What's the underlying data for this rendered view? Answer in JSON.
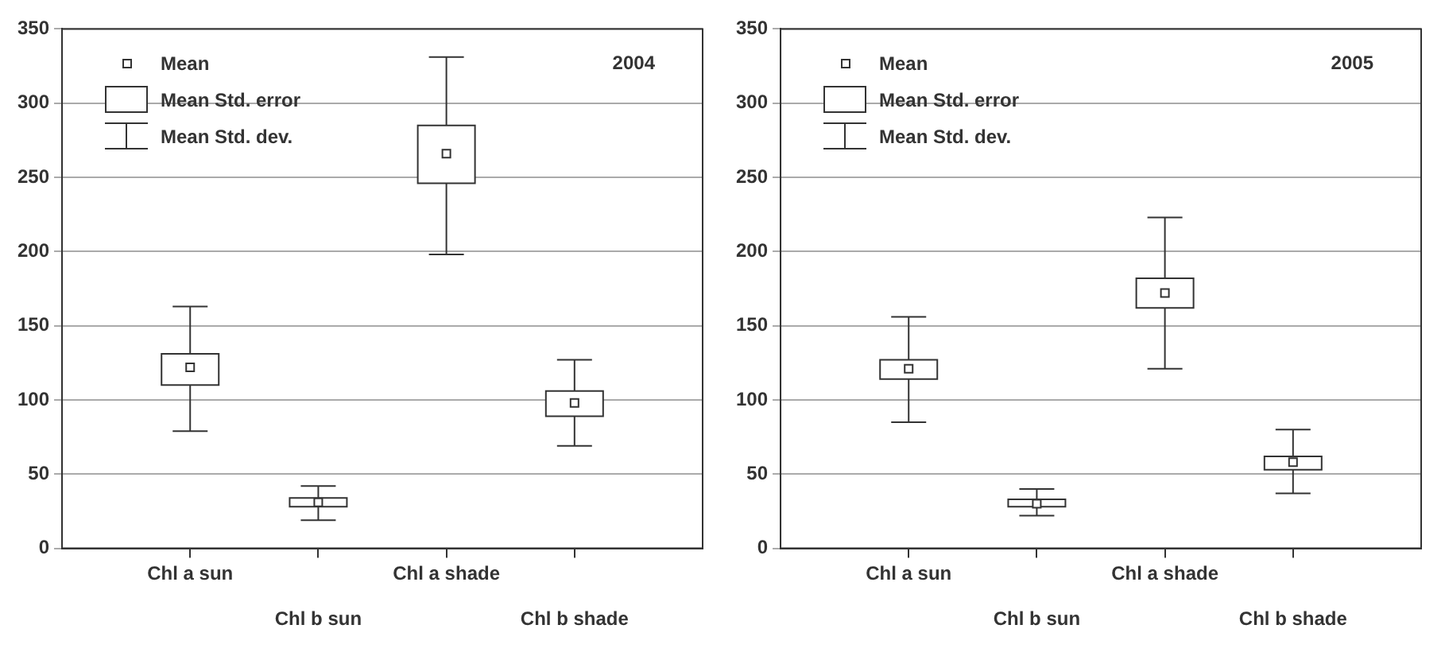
{
  "chart_data": [
    {
      "type": "box",
      "categories": [
        "Chl a sun",
        "Chl b sun",
        "Chl a shade",
        "Chl b shade"
      ],
      "boxes": [
        {
          "low": 79,
          "q1": 110,
          "median": 122,
          "q3": 131,
          "high": 163
        },
        {
          "low": 19,
          "q1": 28,
          "median": 31,
          "q3": 34,
          "high": 42
        },
        {
          "low": 198,
          "q1": 246,
          "median": 266,
          "q3": 285,
          "high": 331
        },
        {
          "low": 69,
          "q1": 89,
          "median": 98,
          "q3": 106,
          "high": 127
        }
      ],
      "color": "#ffffff",
      "ylim": [
        0,
        350
      ],
      "yticks": [
        0,
        50,
        100,
        150,
        200,
        250,
        300,
        350
      ],
      "grid": "y",
      "annotations": [
        "Mean",
        "Mean Std. error",
        "Mean Std. dev.",
        "2004"
      ]
    },
    {
      "type": "box",
      "categories": [
        "Chl a sun",
        "Chl b sun",
        "Chl a shade",
        "Chl b shade"
      ],
      "boxes": [
        {
          "low": 85,
          "q1": 114,
          "median": 121,
          "q3": 127,
          "high": 156
        },
        {
          "low": 22,
          "q1": 28,
          "median": 30,
          "q3": 33,
          "high": 40
        },
        {
          "low": 121,
          "q1": 162,
          "median": 172,
          "q3": 182,
          "high": 223
        },
        {
          "low": 37,
          "q1": 53,
          "median": 58,
          "q3": 62,
          "high": 80
        }
      ],
      "color": "#ffffff",
      "ylim": [
        0,
        350
      ],
      "yticks": [
        0,
        50,
        100,
        150,
        200,
        250,
        300,
        350
      ],
      "grid": "y",
      "annotations": [
        "Mean",
        "Mean Std. error",
        "Mean Std. dev.",
        "2005"
      ]
    }
  ]
}
